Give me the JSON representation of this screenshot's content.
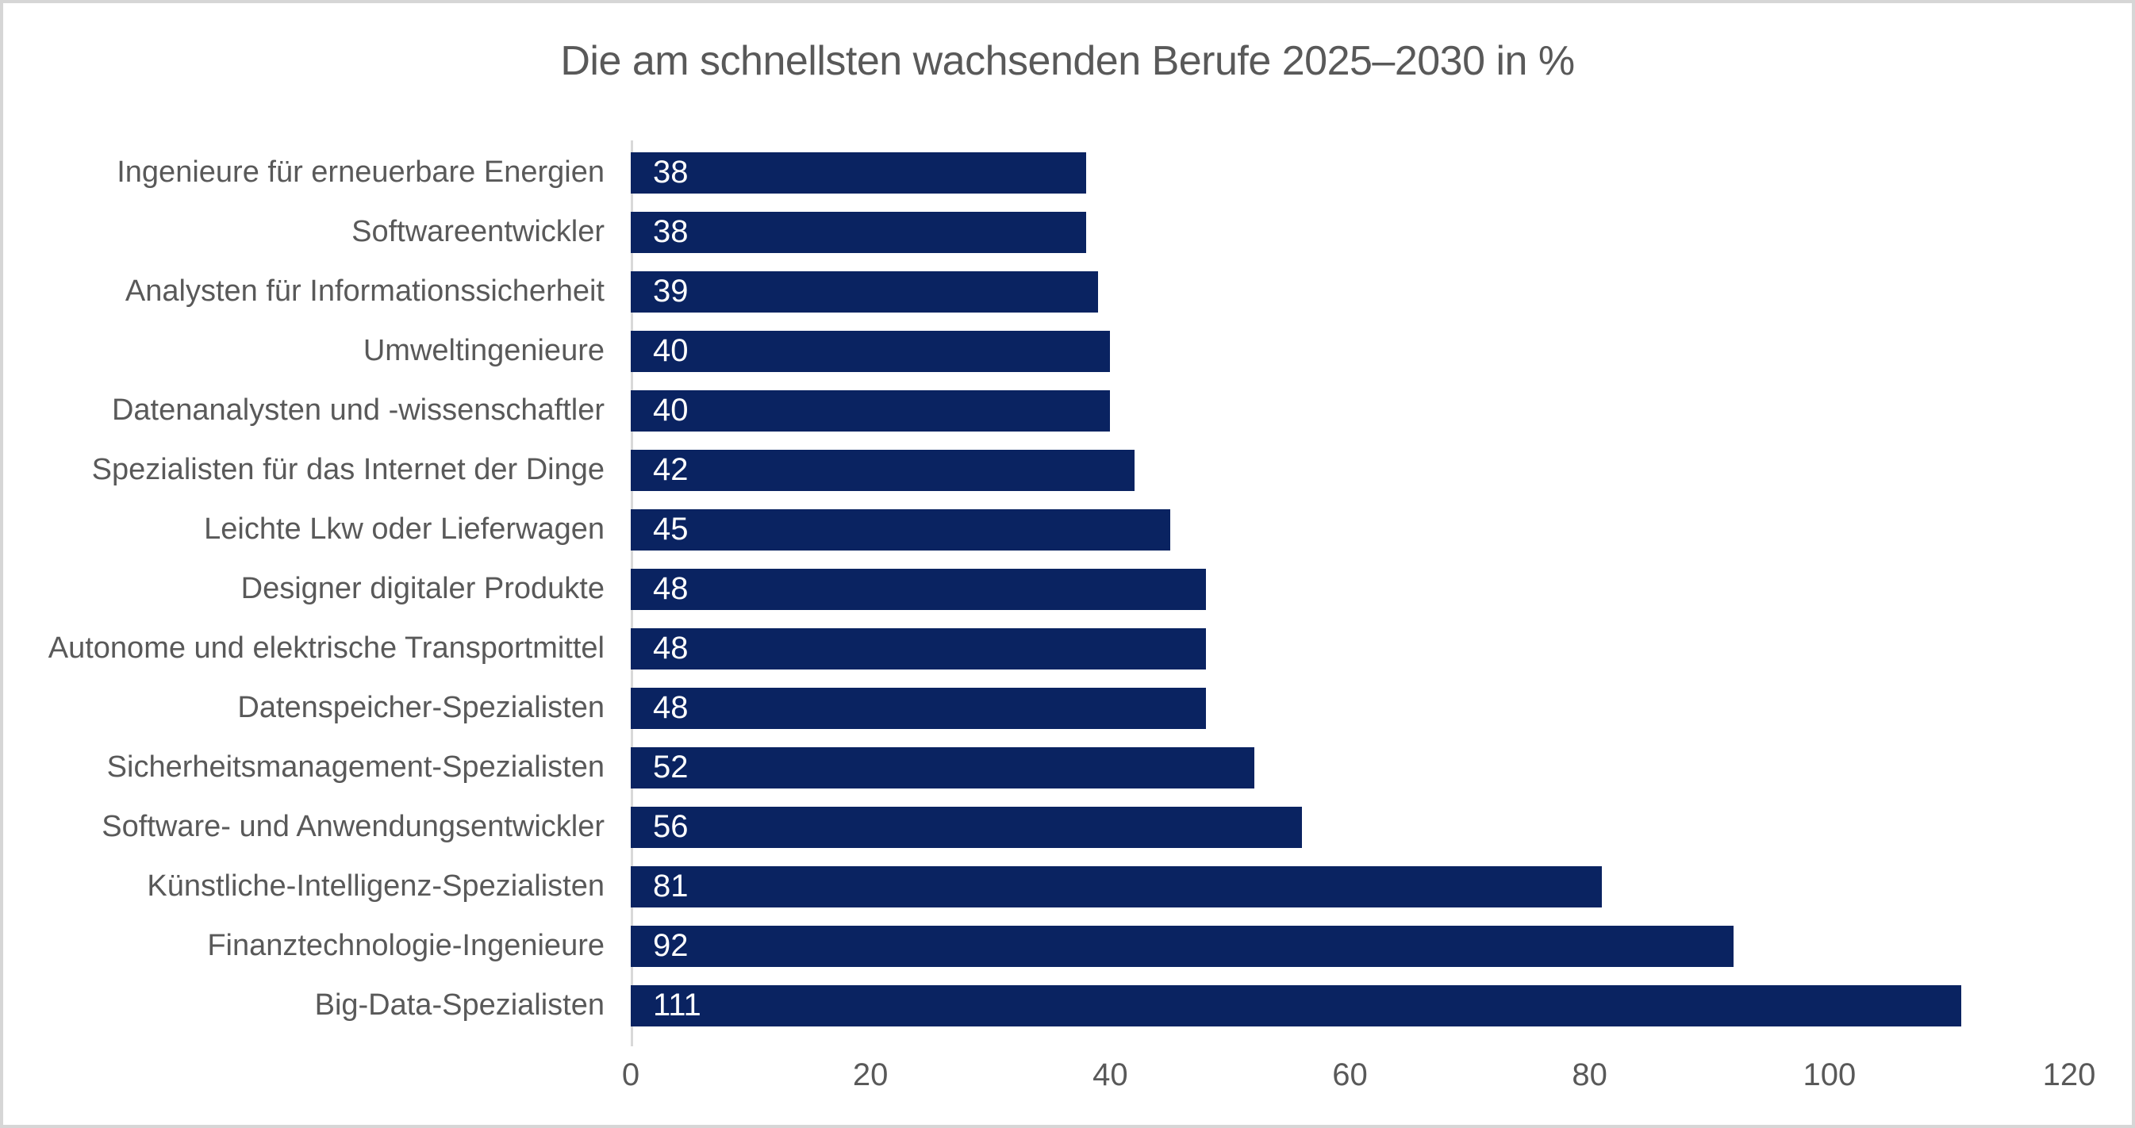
{
  "title": "Die am schnellsten wachsenden Berufe 2025–2030 in %",
  "colors": {
    "bar": "#0a2361",
    "title_text": "#595959",
    "label_text": "#595959",
    "tick_text": "#595959",
    "value_text": "#ffffff",
    "axis_line": "#d9d9d9",
    "frame_border": "#d6d6d6",
    "background": "#ffffff"
  },
  "chart_data": {
    "type": "bar",
    "orientation": "horizontal",
    "title": "Die am schnellsten wachsenden Berufe 2025–2030 in %",
    "xlabel": "",
    "ylabel": "",
    "categories": [
      "Ingenieure für erneuerbare Energien",
      "Softwareentwickler",
      "Analysten für Informationssicherheit",
      "Umweltingenieure",
      "Datenanalysten und -wissenschaftler",
      "Spezialisten für das Internet der Dinge",
      "Leichte Lkw oder Lieferwagen",
      "Designer digitaler Produkte",
      "Autonome und elektrische Transportmittel",
      "Datenspeicher-Spezialisten",
      "Sicherheitsmanagement-Spezialisten",
      "Software- und Anwendungsentwickler",
      "Künstliche-Intelligenz-Spezialisten",
      "Finanztechnologie-Ingenieure",
      "Big-Data-Spezialisten"
    ],
    "values": [
      38,
      38,
      39,
      40,
      40,
      42,
      45,
      48,
      48,
      48,
      52,
      56,
      81,
      92,
      111
    ],
    "xlim": [
      0,
      120
    ],
    "xticks": [
      0,
      20,
      40,
      60,
      80,
      100,
      120
    ],
    "value_labels": "inside-left",
    "grid": false,
    "legend": false
  }
}
